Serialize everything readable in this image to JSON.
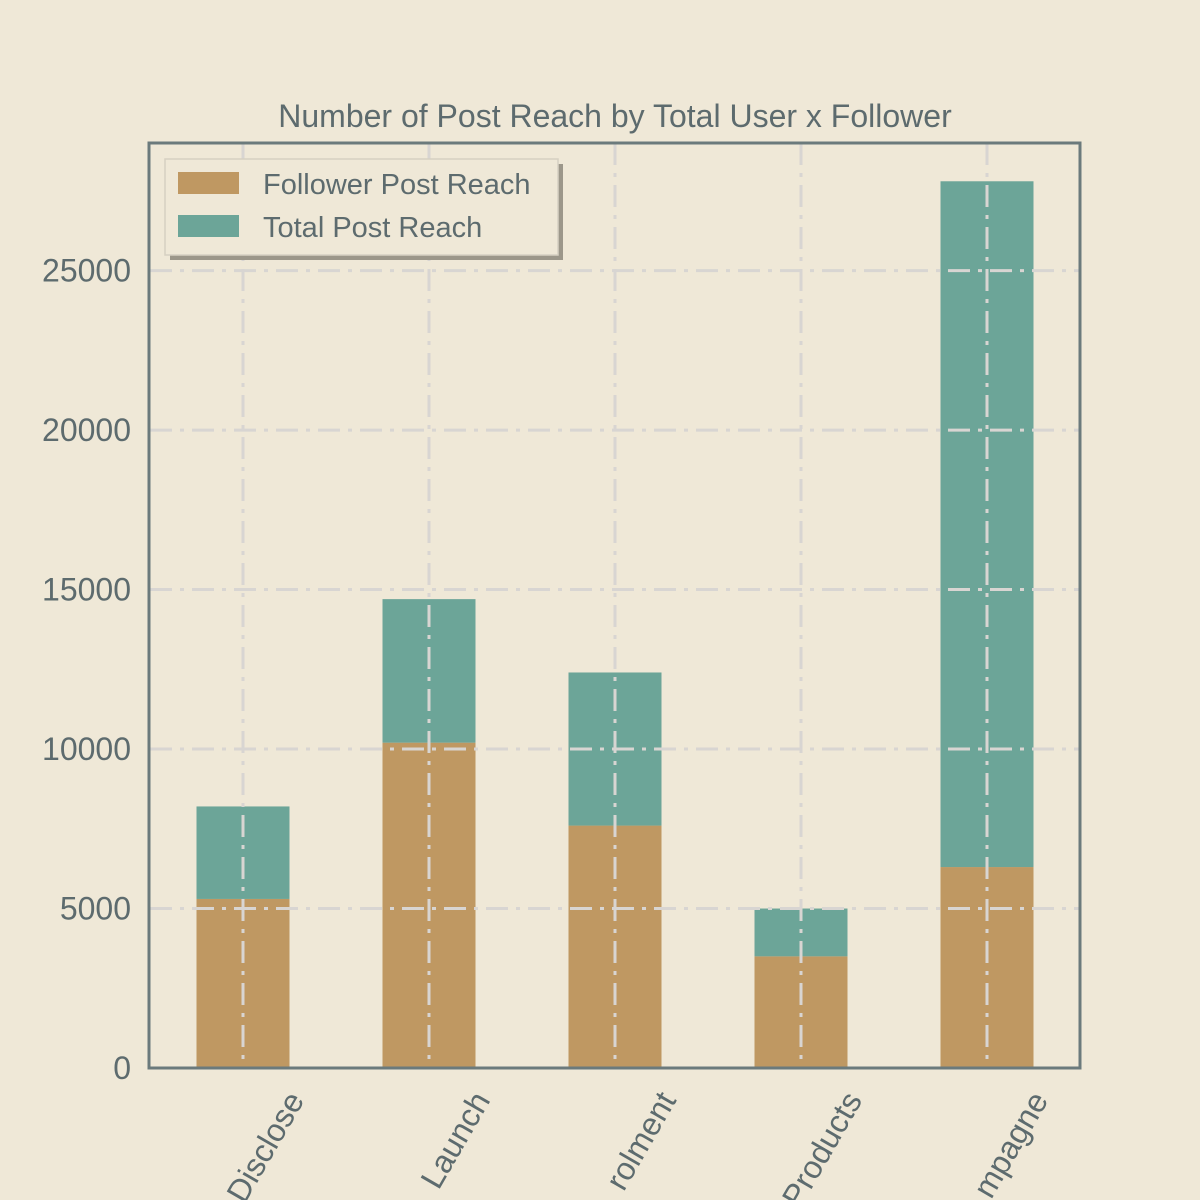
{
  "chart_data": {
    "type": "bar",
    "stacked": true,
    "title": "Number of Post Reach by Total User x Follower",
    "xlabel": "",
    "ylabel": "",
    "categories": [
      "Disclose",
      "Launch",
      "rolment",
      "Products",
      "mpagne"
    ],
    "series": [
      {
        "name": "Follower Post Reach",
        "values": [
          5300,
          10200,
          7600,
          3500,
          6300
        ],
        "color": "#bf9862"
      },
      {
        "name": "Total Post Reach",
        "values": [
          2900,
          4500,
          4800,
          1500,
          21500
        ],
        "color": "#6ca598"
      }
    ],
    "yticks": [
      "0",
      "5000",
      "10000",
      "15000",
      "20000",
      "25000"
    ],
    "ylim": [
      0,
      29000
    ],
    "grid": true,
    "legend_position": "top-left",
    "colors": {
      "background": "#efe8d7",
      "axes_border": "#6b7a7c",
      "grid": "#d8d5d2",
      "text": "#5d6b6e"
    }
  }
}
